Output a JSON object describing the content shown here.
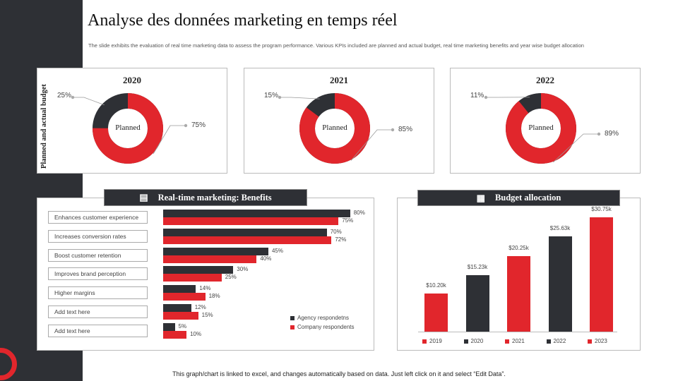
{
  "title": "Analyse des données marketing en temps réel",
  "subtitle": "The slide exhibits the evaluation of real time marketing data to assess the program performance. Various KPIs included are planned and actual budget, real time marketing benefits and year wise budget allocation",
  "colors": {
    "red": "#e1262c",
    "dark": "#2e3035"
  },
  "donuts": {
    "ylabel": "Planned and actual budget",
    "center_label": "Planned",
    "items": [
      {
        "year": "2020",
        "planned": 75,
        "other": 25,
        "planned_label": "75%",
        "other_label": "25%"
      },
      {
        "year": "2021",
        "planned": 85,
        "other": 15,
        "planned_label": "85%",
        "other_label": "15%"
      },
      {
        "year": "2022",
        "planned": 89,
        "other": 11,
        "planned_label": "89%",
        "other_label": "11%"
      }
    ]
  },
  "benefits": {
    "title": "Real-time marketing: Benefits",
    "icon": "presentation-board-icon",
    "chart_data": {
      "type": "bar",
      "orientation": "horizontal",
      "categories": [
        "Enhances customer experience",
        "Increases conversion rates",
        "Boost customer retention",
        "Improves brand perception",
        "Higher margins",
        "Add text here",
        "Add text here"
      ],
      "series": [
        {
          "name": "Agency respondetns",
          "color": "#2e3035",
          "values": [
            80,
            70,
            45,
            30,
            14,
            12,
            5
          ]
        },
        {
          "name": "Company respondents",
          "color": "#e1262c",
          "values": [
            75,
            72,
            40,
            25,
            18,
            15,
            10
          ]
        }
      ],
      "unit": "%"
    }
  },
  "budget": {
    "title": "Budget allocation",
    "icon": "document-icon",
    "chart_data": {
      "type": "bar",
      "categories": [
        "2019",
        "2020",
        "2021",
        "2022",
        "2023"
      ],
      "values": [
        10.2,
        15.23,
        20.25,
        25.63,
        30.75
      ],
      "labels": [
        "$10.20k",
        "$15.23k",
        "$20.25k",
        "$25.63k",
        "$30.75k"
      ],
      "colors": [
        "#e1262c",
        "#2e3035",
        "#e1262c",
        "#2e3035",
        "#e1262c"
      ]
    }
  },
  "footer": "This graph/chart is linked to excel, and changes automatically based on data. Just left click on it and select “Edit Data”."
}
